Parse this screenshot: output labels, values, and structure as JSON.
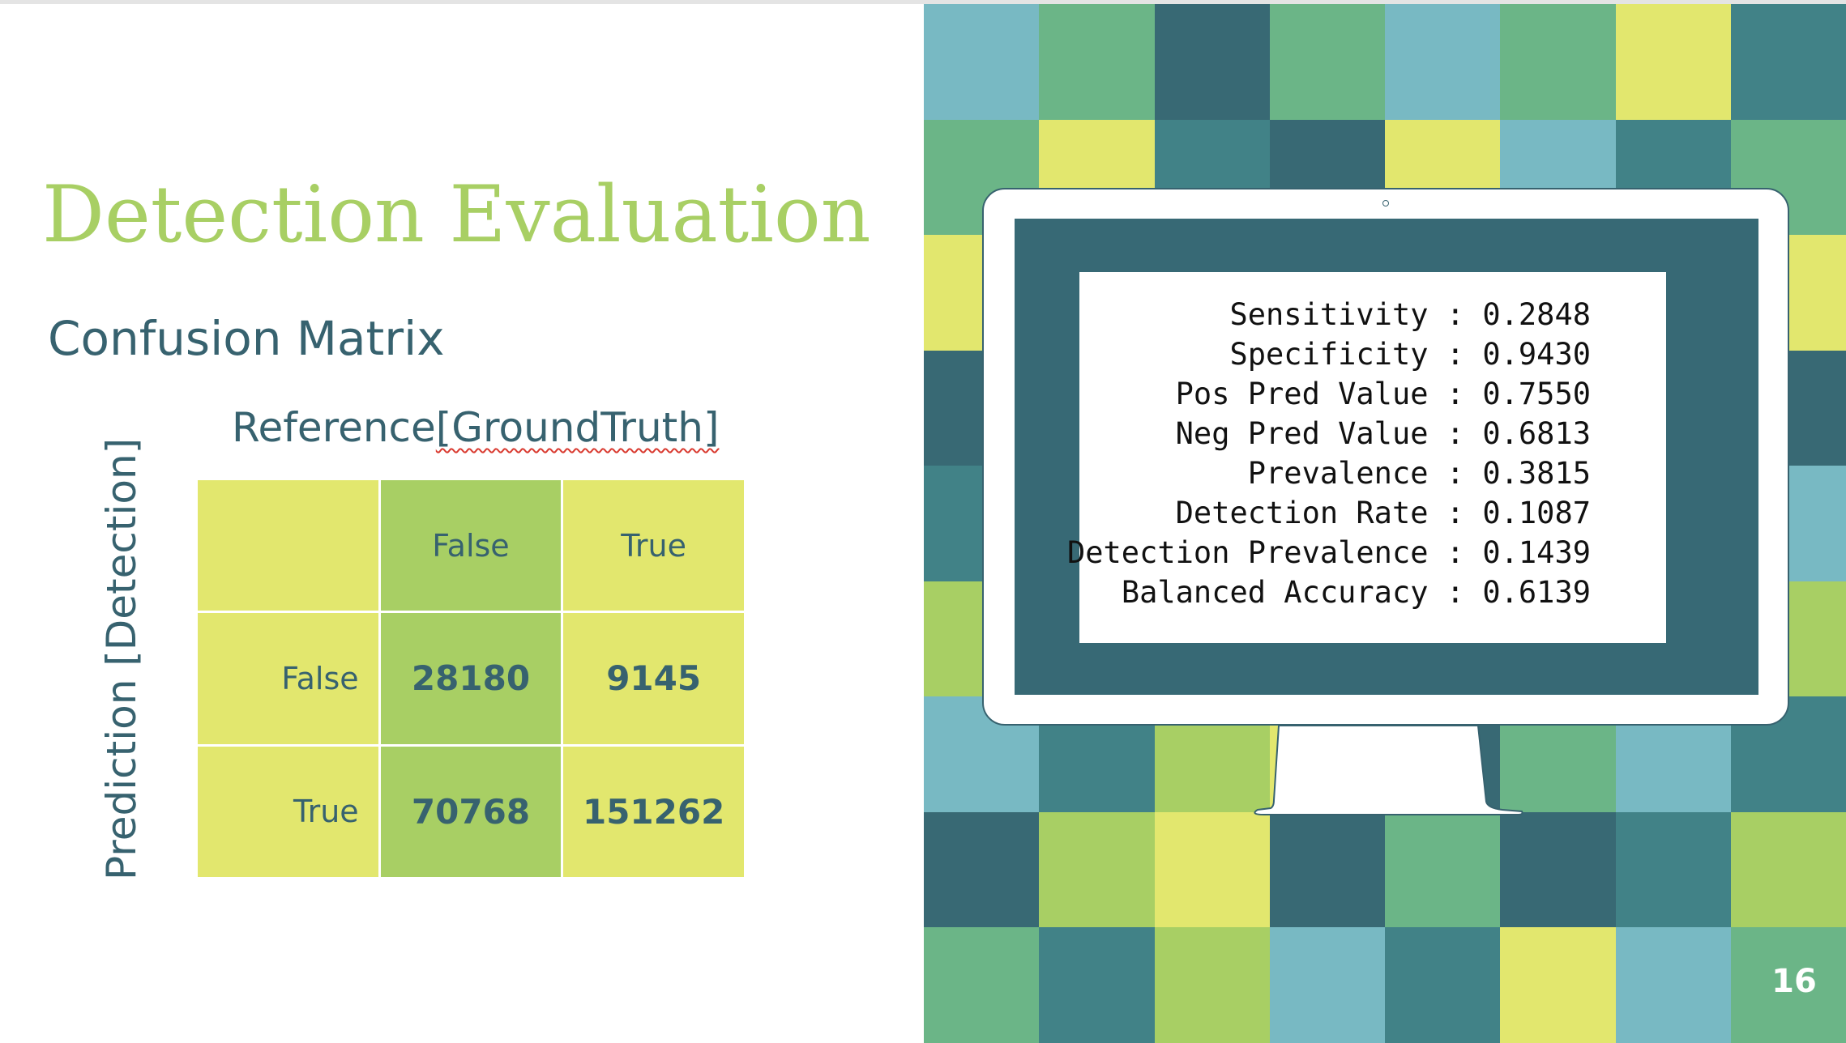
{
  "slide": {
    "title": "Detection Evaluation",
    "subtitle": "Confusion Matrix",
    "reference_label_prefix": "Reference",
    "reference_label_underlined": "[GroundTruth]",
    "prediction_label": "Prediction [Detection]",
    "page_number": "16"
  },
  "matrix": {
    "col_headers": [
      "False",
      "True"
    ],
    "row_headers": [
      "False",
      "True"
    ],
    "values": [
      [
        "28180",
        "9145"
      ],
      [
        "70768",
        "151262"
      ]
    ]
  },
  "stats": [
    {
      "label": "Sensitivity",
      "value": "0.2848"
    },
    {
      "label": "Specificity",
      "value": "0.9430"
    },
    {
      "label": "Pos Pred Value",
      "value": "0.7550"
    },
    {
      "label": "Neg Pred Value",
      "value": "0.6813"
    },
    {
      "label": "Prevalence",
      "value": "0.3815"
    },
    {
      "label": "Detection Rate",
      "value": "0.1087"
    },
    {
      "label": "Detection Prevalence",
      "value": "0.1439"
    },
    {
      "label": "Balanced Accuracy",
      "value": "0.6139"
    }
  ],
  "colors": {
    "title_green": "#a8cf64",
    "text_teal": "#37626f",
    "cell_yellow": "#e2e76e",
    "cell_green": "#a8cf64",
    "bezel": "#376975"
  },
  "mosaic": {
    "palette": {
      "A": "#78b9c3",
      "B": "#6bb587",
      "C": "#386974",
      "D": "#e2e76e",
      "E": "#418287",
      "F": "#a8cf64"
    },
    "rows": [
      "ABCBABDE",
      "BDECDAEB",
      "DBCDFCBD",
      "CFEBDAEC",
      "EDACFBCA",
      "FCBEDBAF",
      "AEFDCBAE",
      "CFDCBCEF",
      "BEFAEDAB"
    ]
  }
}
